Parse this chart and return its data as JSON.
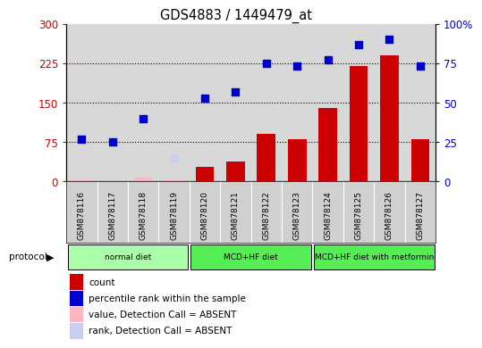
{
  "title": "GDS4883 / 1449479_at",
  "samples": [
    "GSM878116",
    "GSM878117",
    "GSM878118",
    "GSM878119",
    "GSM878120",
    "GSM878121",
    "GSM878122",
    "GSM878123",
    "GSM878124",
    "GSM878125",
    "GSM878126",
    "GSM878127"
  ],
  "count_values": [
    2,
    1,
    8,
    3,
    28,
    38,
    90,
    80,
    140,
    220,
    240,
    80
  ],
  "count_absent": [
    true,
    false,
    true,
    true,
    false,
    false,
    false,
    false,
    false,
    false,
    false,
    false
  ],
  "percentile_values": [
    27,
    25,
    40,
    15,
    53,
    57,
    75,
    73,
    77,
    87,
    90,
    73
  ],
  "percentile_absent": [
    false,
    false,
    false,
    true,
    false,
    false,
    false,
    false,
    false,
    false,
    false,
    false
  ],
  "proto_groups": [
    {
      "label": "normal diet",
      "start": 0,
      "end": 4,
      "color": "#aaffaa"
    },
    {
      "label": "MCD+HF diet",
      "start": 4,
      "end": 8,
      "color": "#55ee55"
    },
    {
      "label": "MCD+HF diet with metformin",
      "start": 8,
      "end": 12,
      "color": "#55ee55"
    }
  ],
  "ylim_left": [
    0,
    300
  ],
  "ylim_right": [
    0,
    100
  ],
  "yticks_left": [
    0,
    75,
    150,
    225,
    300
  ],
  "yticks_right": [
    0,
    25,
    50,
    75,
    100
  ],
  "ytick_labels_right": [
    "0",
    "25",
    "50",
    "75",
    "100%"
  ],
  "bar_color": "#cc0000",
  "bar_absent_color": "#ffb6c1",
  "dot_color": "#0000cc",
  "dot_absent_color": "#c8d0f0",
  "grid_color": "#000000",
  "plot_bg_color": "#d8d8d8",
  "sample_bg_color": "#d0d0d0",
  "left_axis_color": "#cc0000",
  "right_axis_color": "#0000cc",
  "legend_items": [
    {
      "color": "#cc0000",
      "label": "count"
    },
    {
      "color": "#0000cc",
      "label": "percentile rank within the sample"
    },
    {
      "color": "#ffb6c1",
      "label": "value, Detection Call = ABSENT"
    },
    {
      "color": "#c8d0f0",
      "label": "rank, Detection Call = ABSENT"
    }
  ]
}
